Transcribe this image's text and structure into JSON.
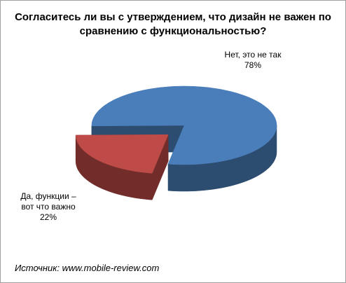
{
  "chart_data": {
    "type": "pie3d",
    "title": "Согласитесь ли вы с утверждением, что дизайн  не важен по сравнению  с функциональностью?",
    "categories": [
      "Нет, это не так",
      "Да, функции – вот что важно"
    ],
    "values": [
      78,
      22
    ],
    "value_labels": [
      "78%",
      "22%"
    ],
    "colors": [
      "#4a7ebb",
      "#be4b48"
    ],
    "source": "Источник: www.mobile-review.com"
  }
}
